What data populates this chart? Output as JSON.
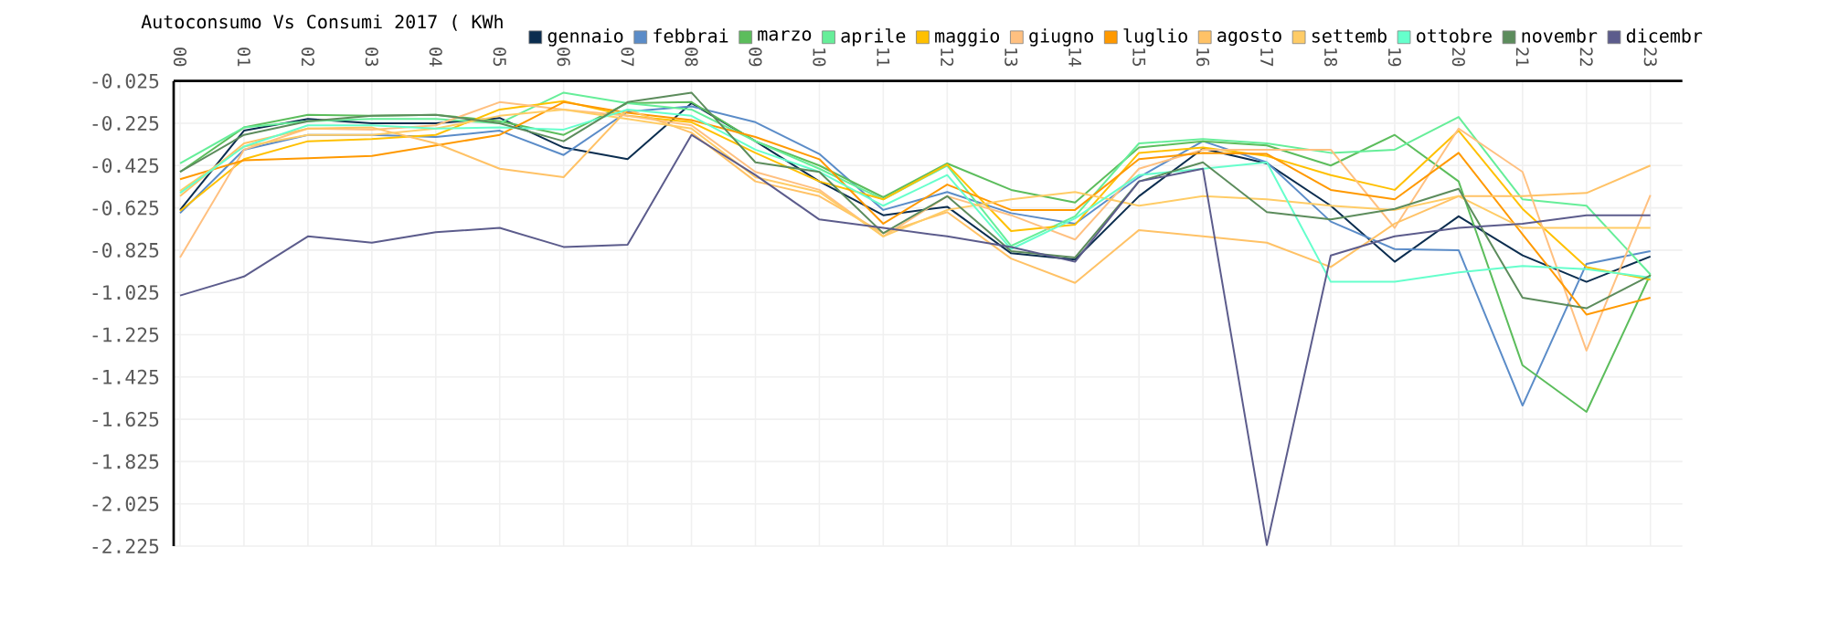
{
  "chart_data": {
    "type": "line",
    "title": "Autoconsumo Vs Consumi 2017 ( KWh",
    "categories": [
      "00",
      "01",
      "02",
      "03",
      "04",
      "05",
      "06",
      "07",
      "08",
      "09",
      "10",
      "11",
      "12",
      "13",
      "14",
      "15",
      "16",
      "17",
      "18",
      "19",
      "20",
      "21",
      "22",
      "23"
    ],
    "ylim": [
      -2.225,
      -0.025
    ],
    "yticks": [
      -2.225,
      -2.025,
      -1.825,
      -1.625,
      -1.425,
      -1.225,
      -1.025,
      -0.825,
      -0.625,
      -0.425,
      -0.225,
      -0.025
    ],
    "grid": true,
    "legend": "top",
    "series": [
      {
        "name": "gennaio",
        "color": "#0b2d4f",
        "values": [
          -0.635,
          -0.26,
          -0.205,
          -0.225,
          -0.225,
          -0.2,
          -0.34,
          -0.395,
          -0.13,
          -0.31,
          -0.5,
          -0.66,
          -0.62,
          -0.84,
          -0.87,
          -0.57,
          -0.345,
          -0.415,
          -0.615,
          -0.88,
          -0.665,
          -0.85,
          -0.975,
          -0.855
        ]
      },
      {
        "name": "febbrai",
        "color": "#5b8cc8",
        "values": [
          -0.65,
          -0.35,
          -0.28,
          -0.28,
          -0.29,
          -0.26,
          -0.375,
          -0.17,
          -0.145,
          -0.22,
          -0.37,
          -0.635,
          -0.55,
          -0.65,
          -0.7,
          -0.48,
          -0.31,
          -0.41,
          -0.69,
          -0.82,
          -0.825,
          -1.56,
          -0.89,
          -0.83
        ]
      },
      {
        "name": "marzo",
        "color": "#5cbd5c",
        "values": [
          -0.455,
          -0.245,
          -0.185,
          -0.19,
          -0.185,
          -0.215,
          -0.28,
          -0.13,
          -0.125,
          -0.31,
          -0.425,
          -0.575,
          -0.415,
          -0.54,
          -0.6,
          -0.34,
          -0.31,
          -0.33,
          -0.425,
          -0.28,
          -0.5,
          -1.37,
          -1.59,
          -0.94
        ]
      },
      {
        "name": "aprile",
        "color": "#66ee99",
        "values": [
          -0.415,
          -0.245,
          -0.215,
          -0.205,
          -0.205,
          -0.225,
          -0.08,
          -0.13,
          -0.16,
          -0.31,
          -0.44,
          -0.585,
          -0.425,
          -0.805,
          -0.665,
          -0.32,
          -0.3,
          -0.32,
          -0.365,
          -0.35,
          -0.195,
          -0.585,
          -0.615,
          -0.94
        ]
      },
      {
        "name": "maggio",
        "color": "#ffc000",
        "values": [
          -0.64,
          -0.395,
          -0.31,
          -0.3,
          -0.28,
          -0.16,
          -0.12,
          -0.19,
          -0.22,
          -0.365,
          -0.5,
          -0.585,
          -0.42,
          -0.735,
          -0.705,
          -0.365,
          -0.34,
          -0.38,
          -0.47,
          -0.54,
          -0.26,
          -0.63,
          -0.905,
          -0.965
        ]
      },
      {
        "name": "giugno",
        "color": "#ffc080",
        "values": [
          -0.86,
          -0.35,
          -0.25,
          -0.255,
          -0.235,
          -0.125,
          -0.16,
          -0.19,
          -0.235,
          -0.455,
          -0.54,
          -0.76,
          -0.57,
          -0.66,
          -0.775,
          -0.44,
          -0.35,
          -0.35,
          -0.35,
          -0.72,
          -0.25,
          -0.455,
          -1.3,
          -0.565
        ]
      },
      {
        "name": "luglio",
        "color": "#ff9900",
        "values": [
          -0.49,
          -0.4,
          -0.39,
          -0.38,
          -0.33,
          -0.28,
          -0.125,
          -0.175,
          -0.21,
          -0.29,
          -0.395,
          -0.7,
          -0.515,
          -0.635,
          -0.635,
          -0.395,
          -0.365,
          -0.37,
          -0.54,
          -0.585,
          -0.365,
          -0.75,
          -1.13,
          -1.05
        ]
      },
      {
        "name": "agosto",
        "color": "#ffc266",
        "values": [
          -0.57,
          -0.32,
          -0.25,
          -0.245,
          -0.32,
          -0.44,
          -0.48,
          -0.16,
          -0.27,
          -0.5,
          -0.57,
          -0.745,
          -0.645,
          -0.865,
          -0.98,
          -0.73,
          -0.76,
          -0.79,
          -0.905,
          -0.7,
          -0.57,
          -0.57,
          -0.555,
          -0.425
        ]
      },
      {
        "name": "settemb",
        "color": "#ffcc66",
        "values": [
          -0.545,
          -0.335,
          -0.28,
          -0.28,
          -0.25,
          -0.19,
          -0.16,
          -0.205,
          -0.25,
          -0.48,
          -0.55,
          -0.76,
          -0.635,
          -0.585,
          -0.55,
          -0.615,
          -0.57,
          -0.585,
          -0.615,
          -0.635,
          -0.57,
          -0.72,
          -0.72,
          -0.72
        ]
      },
      {
        "name": "ottobre",
        "color": "#66ffcc",
        "values": [
          -0.555,
          -0.335,
          -0.235,
          -0.235,
          -0.25,
          -0.245,
          -0.255,
          -0.16,
          -0.19,
          -0.35,
          -0.455,
          -0.615,
          -0.47,
          -0.82,
          -0.675,
          -0.47,
          -0.44,
          -0.41,
          -0.975,
          -0.975,
          -0.93,
          -0.9,
          -0.915,
          -0.955
        ]
      },
      {
        "name": "novembr",
        "color": "#5c8c5c",
        "values": [
          -0.455,
          -0.28,
          -0.215,
          -0.19,
          -0.185,
          -0.225,
          -0.31,
          -0.125,
          -0.08,
          -0.41,
          -0.455,
          -0.745,
          -0.57,
          -0.83,
          -0.86,
          -0.5,
          -0.41,
          -0.645,
          -0.68,
          -0.63,
          -0.535,
          -1.05,
          -1.1,
          -0.945
        ]
      },
      {
        "name": "dicembr",
        "color": "#5c5c8c",
        "values": [
          -1.04,
          -0.95,
          -0.76,
          -0.79,
          -0.74,
          -0.72,
          -0.81,
          -0.8,
          -0.28,
          -0.47,
          -0.68,
          -0.72,
          -0.76,
          -0.81,
          -0.88,
          -0.5,
          -0.44,
          -2.22,
          -0.85,
          -0.76,
          -0.72,
          -0.7,
          -0.66,
          -0.66
        ]
      }
    ]
  }
}
